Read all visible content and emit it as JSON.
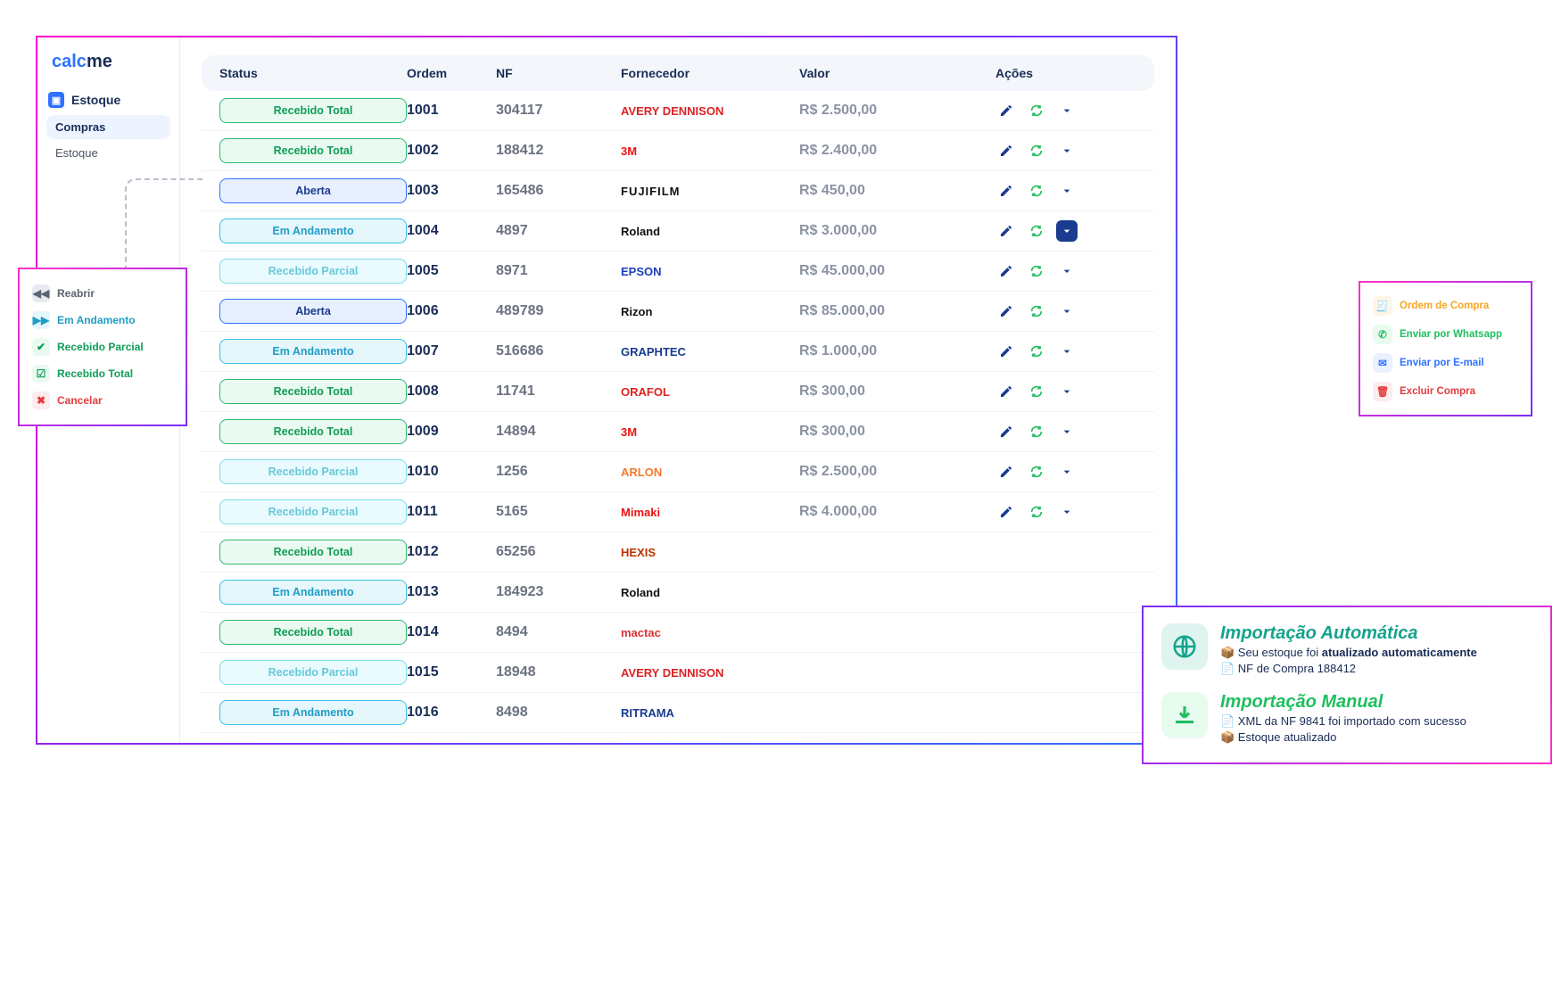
{
  "logo": {
    "part1": "calc",
    "part2": "me"
  },
  "sidebar": {
    "section": "Estoque",
    "items": [
      "Compras",
      "Estoque"
    ],
    "active_index": 0
  },
  "columns": {
    "status": "Status",
    "ordem": "Ordem",
    "nf": "NF",
    "fornecedor": "Fornecedor",
    "valor": "Valor",
    "acoes": "Ações"
  },
  "status_types": {
    "total": {
      "label": "Recebido Total",
      "cls": "st-total"
    },
    "aberta": {
      "label": "Aberta",
      "cls": "st-aberta"
    },
    "andam": {
      "label": "Em Andamento",
      "cls": "st-andam"
    },
    "parcial": {
      "label": "Recebido Parcial",
      "cls": "st-parcial"
    }
  },
  "rows": [
    {
      "status": "total",
      "ordem": "1001",
      "nf": "304117",
      "forn": "AVERY DENNISON",
      "forn_cls": "brand-avery",
      "valor": "R$ 2.500,00"
    },
    {
      "status": "total",
      "ordem": "1002",
      "nf": "188412",
      "forn": "3M",
      "forn_cls": "brand-3m",
      "valor": "R$ 2.400,00"
    },
    {
      "status": "aberta",
      "ordem": "1003",
      "nf": "165486",
      "forn": "FUJIFILM",
      "forn_cls": "brand-fuji",
      "valor": "R$ 450,00"
    },
    {
      "status": "andam",
      "ordem": "1004",
      "nf": "4897",
      "forn": "Roland",
      "forn_cls": "brand-roland",
      "valor": "R$ 3.000,00",
      "drop_open": true
    },
    {
      "status": "parcial",
      "ordem": "1005",
      "nf": "8971",
      "forn": "EPSON",
      "forn_cls": "brand-epson",
      "valor": "R$ 45.000,00"
    },
    {
      "status": "aberta",
      "ordem": "1006",
      "nf": "489789",
      "forn": "Rizon",
      "forn_cls": "brand-rizon",
      "valor": "R$ 85.000,00"
    },
    {
      "status": "andam",
      "ordem": "1007",
      "nf": "516686",
      "forn": "GRAPHTEC",
      "forn_cls": "brand-graphtec",
      "valor": "R$ 1.000,00"
    },
    {
      "status": "total",
      "ordem": "1008",
      "nf": "11741",
      "forn": "ORAFOL",
      "forn_cls": "brand-orafol",
      "valor": "R$ 300,00"
    },
    {
      "status": "total",
      "ordem": "1009",
      "nf": "14894",
      "forn": "3M",
      "forn_cls": "brand-3m",
      "valor": "R$ 300,00"
    },
    {
      "status": "parcial",
      "ordem": "1010",
      "nf": "1256",
      "forn": "ARLON",
      "forn_cls": "brand-arlon",
      "valor": "R$ 2.500,00"
    },
    {
      "status": "parcial",
      "ordem": "1011",
      "nf": "5165",
      "forn": "Mimaki",
      "forn_cls": "brand-mimaki",
      "valor": "R$ 4.000,00"
    },
    {
      "status": "total",
      "ordem": "1012",
      "nf": "65256",
      "forn": "HEXIS",
      "forn_cls": "brand-hexis",
      "valor": ""
    },
    {
      "status": "andam",
      "ordem": "1013",
      "nf": "184923",
      "forn": "Roland",
      "forn_cls": "brand-roland",
      "valor": ""
    },
    {
      "status": "total",
      "ordem": "1014",
      "nf": "8494",
      "forn": "mactac",
      "forn_cls": "brand-mactac",
      "valor": ""
    },
    {
      "status": "parcial",
      "ordem": "1015",
      "nf": "18948",
      "forn": "AVERY DENNISON",
      "forn_cls": "brand-avery",
      "valor": ""
    },
    {
      "status": "andam",
      "ordem": "1016",
      "nf": "8498",
      "forn": "RITRAMA",
      "forn_cls": "brand-ritrama",
      "valor": ""
    }
  ],
  "status_menu": [
    {
      "label": "Reabrir",
      "color": "#5b6470",
      "bg": "#e7ebf0",
      "icon": "rewind"
    },
    {
      "label": "Em Andamento",
      "color": "#1f9dc7",
      "bg": "#e6f7fb",
      "icon": "fwd"
    },
    {
      "label": "Recebido Parcial",
      "color": "#0f9d58",
      "bg": "#eafaf0",
      "icon": "check"
    },
    {
      "label": "Recebido Total",
      "color": "#0f9d58",
      "bg": "#eafaf0",
      "icon": "checkbox"
    },
    {
      "label": "Cancelar",
      "color": "#e23b3b",
      "bg": "#fdecec",
      "icon": "x"
    }
  ],
  "drop_menu": [
    {
      "label": "Ordem de Compra",
      "color": "#f5a623",
      "bg": "#fff5e6",
      "icon": "doc"
    },
    {
      "label": "Enviar por Whatsapp",
      "color": "#1fbf5f",
      "bg": "#e8fbef",
      "icon": "wa"
    },
    {
      "label": "Enviar por E-mail",
      "color": "#2f72ff",
      "bg": "#eaf1ff",
      "icon": "mail"
    },
    {
      "label": "Excluir Compra",
      "color": "#e23b3b",
      "bg": "#fdecec",
      "icon": "trash"
    }
  ],
  "import": {
    "auto": {
      "title": "Importação Automática",
      "title_color": "#14a38b",
      "line1_pre": "📦 Seu estoque foi ",
      "line1_bold": "atualizado automaticamente",
      "line2": "📄 NF de Compra 188412",
      "icon_bg": "#dff3ef",
      "icon_color": "#14a38b"
    },
    "manual": {
      "title": "Importação Manual",
      "title_color": "#1fbf5f",
      "line1": "📄 XML da NF 9841 foi importado com sucesso",
      "line2": "📦 Estoque atualizado",
      "icon_bg": "#e8fbef",
      "icon_color": "#1fbf5f"
    }
  }
}
